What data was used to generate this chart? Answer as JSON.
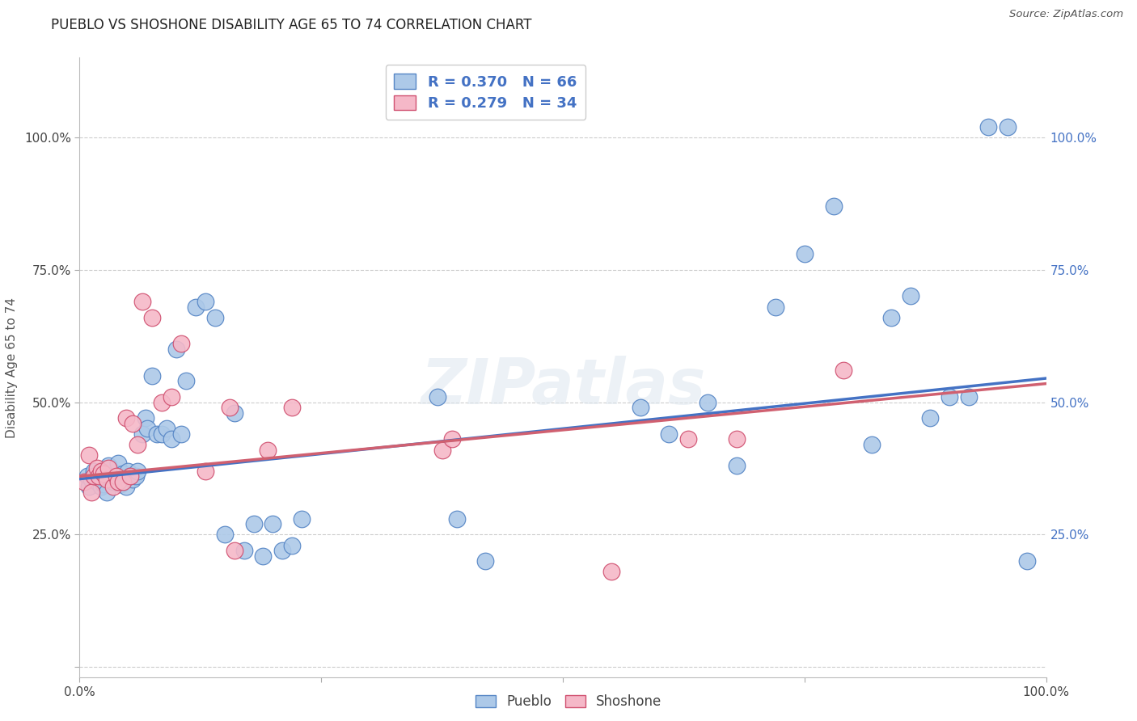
{
  "title": "PUEBLO VS SHOSHONE DISABILITY AGE 65 TO 74 CORRELATION CHART",
  "source": "Source: ZipAtlas.com",
  "ylabel": "Disability Age 65 to 74",
  "pueblo_R": 0.37,
  "pueblo_N": 66,
  "shoshone_R": 0.279,
  "shoshone_N": 34,
  "pueblo_color": "#adc9e8",
  "shoshone_color": "#f5b8c8",
  "pueblo_edge_color": "#5585c5",
  "shoshone_edge_color": "#d05070",
  "pueblo_line_color": "#4472C4",
  "shoshone_line_color": "#d06070",
  "grid_color": "#cccccc",
  "background_color": "#ffffff",
  "xlim": [
    0.0,
    1.0
  ],
  "ylim": [
    -0.02,
    1.15
  ],
  "pueblo_x": [
    0.008,
    0.01,
    0.012,
    0.015,
    0.015,
    0.018,
    0.02,
    0.022,
    0.022,
    0.025,
    0.028,
    0.03,
    0.032,
    0.035,
    0.038,
    0.04,
    0.042,
    0.045,
    0.048,
    0.05,
    0.052,
    0.055,
    0.058,
    0.06,
    0.065,
    0.068,
    0.07,
    0.075,
    0.08,
    0.085,
    0.09,
    0.095,
    0.1,
    0.105,
    0.11,
    0.12,
    0.13,
    0.14,
    0.15,
    0.16,
    0.17,
    0.18,
    0.19,
    0.2,
    0.21,
    0.22,
    0.23,
    0.37,
    0.39,
    0.42,
    0.58,
    0.61,
    0.65,
    0.68,
    0.72,
    0.75,
    0.78,
    0.82,
    0.84,
    0.86,
    0.88,
    0.9,
    0.92,
    0.94,
    0.96,
    0.98
  ],
  "pueblo_y": [
    0.36,
    0.34,
    0.355,
    0.365,
    0.37,
    0.35,
    0.355,
    0.34,
    0.36,
    0.345,
    0.33,
    0.38,
    0.36,
    0.35,
    0.365,
    0.385,
    0.345,
    0.365,
    0.34,
    0.37,
    0.36,
    0.355,
    0.36,
    0.37,
    0.44,
    0.47,
    0.45,
    0.55,
    0.44,
    0.44,
    0.45,
    0.43,
    0.6,
    0.44,
    0.54,
    0.68,
    0.69,
    0.66,
    0.25,
    0.48,
    0.22,
    0.27,
    0.21,
    0.27,
    0.22,
    0.23,
    0.28,
    0.51,
    0.28,
    0.2,
    0.49,
    0.44,
    0.5,
    0.38,
    0.68,
    0.78,
    0.87,
    0.42,
    0.66,
    0.7,
    0.47,
    0.51,
    0.51,
    1.02,
    1.02,
    0.2
  ],
  "shoshone_x": [
    0.005,
    0.01,
    0.012,
    0.015,
    0.018,
    0.02,
    0.022,
    0.025,
    0.028,
    0.03,
    0.035,
    0.038,
    0.04,
    0.045,
    0.048,
    0.052,
    0.055,
    0.06,
    0.065,
    0.075,
    0.085,
    0.095,
    0.105,
    0.13,
    0.155,
    0.16,
    0.195,
    0.22,
    0.375,
    0.385,
    0.55,
    0.63,
    0.68,
    0.79
  ],
  "shoshone_y": [
    0.35,
    0.4,
    0.33,
    0.36,
    0.375,
    0.36,
    0.37,
    0.365,
    0.355,
    0.375,
    0.34,
    0.36,
    0.35,
    0.35,
    0.47,
    0.36,
    0.46,
    0.42,
    0.69,
    0.66,
    0.5,
    0.51,
    0.61,
    0.37,
    0.49,
    0.22,
    0.41,
    0.49,
    0.41,
    0.43,
    0.18,
    0.43,
    0.43,
    0.56
  ],
  "pueblo_line_y0": 0.355,
  "pueblo_line_y1": 0.545,
  "shoshone_line_y0": 0.36,
  "shoshone_line_y1": 0.535,
  "yticks": [
    0.0,
    0.25,
    0.5,
    0.75,
    1.0
  ],
  "xticks": [
    0.0,
    0.25,
    0.5,
    0.75,
    1.0
  ]
}
